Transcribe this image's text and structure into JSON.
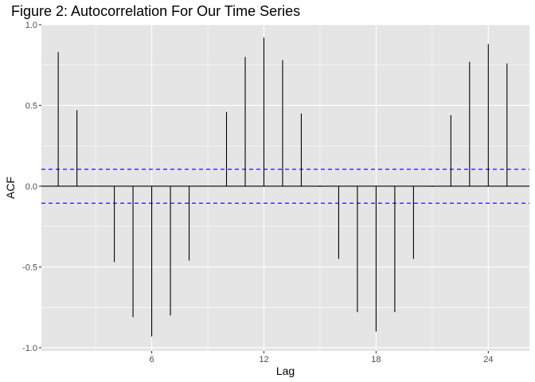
{
  "chart_data": {
    "type": "bar",
    "title": "Figure 2: Autocorrelation For Our Time Series",
    "xlabel": "Lag",
    "ylabel": "ACF",
    "xlim": [
      0.1,
      26.2
    ],
    "ylim": [
      -1.02,
      1.0
    ],
    "x_ticks": [
      6,
      12,
      18,
      24
    ],
    "y_ticks": [
      -1.0,
      -0.5,
      0.0,
      0.5,
      1.0
    ],
    "y_tick_labels": [
      "-1.0",
      "-0.5",
      "0.0",
      "0.5",
      "1.0"
    ],
    "lags": [
      1,
      2,
      3,
      4,
      5,
      6,
      7,
      8,
      9,
      10,
      11,
      12,
      13,
      14,
      15,
      16,
      17,
      18,
      19,
      20,
      21,
      22,
      23,
      24,
      25
    ],
    "acf": [
      0.83,
      0.47,
      0.0,
      -0.47,
      -0.81,
      -0.93,
      -0.8,
      -0.46,
      0.0,
      0.46,
      0.8,
      0.92,
      0.78,
      0.45,
      -0.005,
      -0.45,
      -0.78,
      -0.9,
      -0.78,
      -0.45,
      -0.005,
      0.44,
      0.77,
      0.88,
      0.76
    ],
    "confidence_bound": 0.105,
    "grid": true,
    "colors": {
      "panel": "#e5e5e5",
      "grid_major": "#ffffff",
      "bars": "#000000",
      "confidence": "#0000ff",
      "zero_line": "#000000"
    }
  }
}
